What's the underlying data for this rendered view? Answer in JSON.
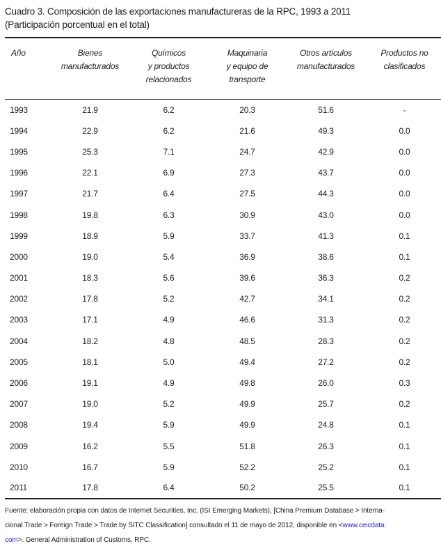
{
  "title": {
    "line1": "Cuadro 3. Composición de las exportaciones manufactureras de la RPC, 1993 a 2011",
    "line2": "(Participación porcentual en el total)"
  },
  "table": {
    "columns": [
      "Año",
      "Bienes\nmanufacturados",
      "Químicos\ny productos\nrelacionados",
      "Maquinaria\ny equipo de\ntransporte",
      "Otros artículos\nmanufacturados",
      "Productos no\nclasificados"
    ],
    "rows": [
      {
        "year": "1993",
        "bienes": "21.9",
        "quimicos": "6.2",
        "maquinaria": "20.3",
        "otros": "51.6",
        "no_clasificados": "-"
      },
      {
        "year": "1994",
        "bienes": "22.9",
        "quimicos": "6.2",
        "maquinaria": "21.6",
        "otros": "49.3",
        "no_clasificados": "0.0"
      },
      {
        "year": "1995",
        "bienes": "25.3",
        "quimicos": "7.1",
        "maquinaria": "24.7",
        "otros": "42.9",
        "no_clasificados": "0.0"
      },
      {
        "year": "1996",
        "bienes": "22.1",
        "quimicos": "6.9",
        "maquinaria": "27.3",
        "otros": "43.7",
        "no_clasificados": "0.0"
      },
      {
        "year": "1997",
        "bienes": "21.7",
        "quimicos": "6.4",
        "maquinaria": "27.5",
        "otros": "44.3",
        "no_clasificados": "0.0"
      },
      {
        "year": "1998",
        "bienes": "19.8",
        "quimicos": "6.3",
        "maquinaria": "30.9",
        "otros": "43.0",
        "no_clasificados": "0.0"
      },
      {
        "year": "1999",
        "bienes": "18.9",
        "quimicos": "5.9",
        "maquinaria": "33.7",
        "otros": "41.3",
        "no_clasificados": "0.1"
      },
      {
        "year": "2000",
        "bienes": "19.0",
        "quimicos": "5.4",
        "maquinaria": "36.9",
        "otros": "38.6",
        "no_clasificados": "0.1"
      },
      {
        "year": "2001",
        "bienes": "18.3",
        "quimicos": "5.6",
        "maquinaria": "39.6",
        "otros": "36.3",
        "no_clasificados": "0.2"
      },
      {
        "year": "2002",
        "bienes": "17.8",
        "quimicos": "5.2",
        "maquinaria": "42.7",
        "otros": "34.1",
        "no_clasificados": "0.2"
      },
      {
        "year": "2003",
        "bienes": "17.1",
        "quimicos": "4.9",
        "maquinaria": "46.6",
        "otros": "31.3",
        "no_clasificados": "0.2"
      },
      {
        "year": "2004",
        "bienes": "18.2",
        "quimicos": "4.8",
        "maquinaria": "48.5",
        "otros": "28.3",
        "no_clasificados": "0.2"
      },
      {
        "year": "2005",
        "bienes": "18.1",
        "quimicos": "5.0",
        "maquinaria": "49.4",
        "otros": "27.2",
        "no_clasificados": "0.2"
      },
      {
        "year": "2006",
        "bienes": "19.1",
        "quimicos": "4.9",
        "maquinaria": "49.8",
        "otros": "26.0",
        "no_clasificados": "0.3"
      },
      {
        "year": "2007",
        "bienes": "19.0",
        "quimicos": "5.2",
        "maquinaria": "49.9",
        "otros": "25.7",
        "no_clasificados": "0.2"
      },
      {
        "year": "2008",
        "bienes": "19.4",
        "quimicos": "5.9",
        "maquinaria": "49.9",
        "otros": "24.8",
        "no_clasificados": "0.1"
      },
      {
        "year": "2009",
        "bienes": "16.2",
        "quimicos": "5.5",
        "maquinaria": "51.8",
        "otros": "26.3",
        "no_clasificados": "0.1"
      },
      {
        "year": "2010",
        "bienes": "16.7",
        "quimicos": "5.9",
        "maquinaria": "52.2",
        "otros": "25.2",
        "no_clasificados": "0.1"
      },
      {
        "year": "2011",
        "bienes": "17.8",
        "quimicos": "6.4",
        "maquinaria": "50.2",
        "otros": "25.5",
        "no_clasificados": "0.1"
      }
    ]
  },
  "footer": {
    "line1": "Fuente: elaboración propia con datos de Internet Securities, Inc. (ISI Emerging Markets), [China Premium Database > Interna-",
    "line2_text": "cional Trade > Foreign Trade > Trade by SITC Classification] consultado el 11 de mayo de 2012, disponible en <",
    "line2_link": "www.ceicdata.",
    "line3_link": "com",
    "line3_text": ">. General Administration of Customs, RPC."
  },
  "colors": {
    "background": "#ffffff",
    "text": "#1d1d1d",
    "rule": "#1d1d1d",
    "link": "#2222cc"
  }
}
